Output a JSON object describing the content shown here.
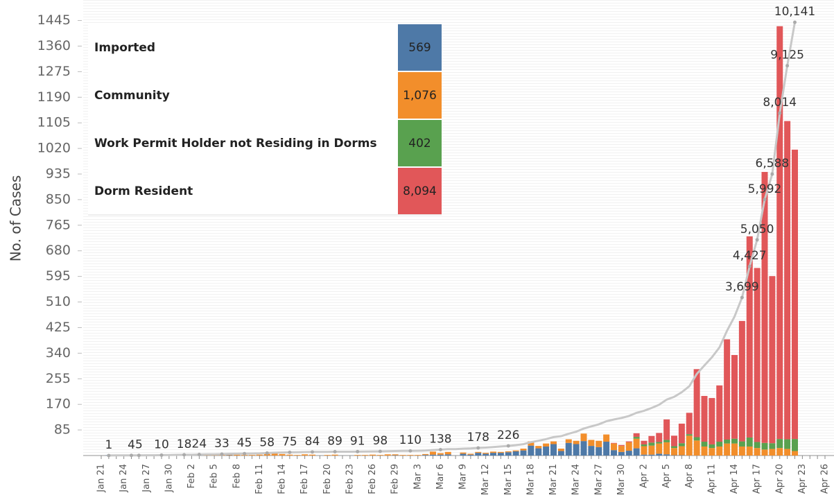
{
  "chart_data": {
    "type": "bar",
    "stacked": true,
    "y_label": "No. of Cases",
    "ylim": [
      0,
      1490
    ],
    "yticks": [
      85,
      170,
      255,
      340,
      425,
      510,
      595,
      680,
      765,
      850,
      935,
      1020,
      1105,
      1190,
      1275,
      1360,
      1445
    ],
    "y2lim": [
      0,
      10500
    ],
    "categories": [
      "Jan 21",
      null,
      null,
      "Jan 24",
      null,
      null,
      "Jan 27",
      null,
      null,
      "Jan 30",
      null,
      null,
      "Feb 2",
      null,
      null,
      "Feb 5",
      null,
      null,
      "Feb 8",
      null,
      null,
      "Feb 11",
      null,
      null,
      "Feb 14",
      null,
      null,
      "Feb 17",
      null,
      null,
      "Feb 20",
      null,
      null,
      "Feb 23",
      null,
      null,
      "Feb 26",
      null,
      null,
      "Feb 29",
      null,
      null,
      "Mar 3",
      null,
      null,
      "Mar 6",
      null,
      null,
      "Mar 9",
      null,
      null,
      "Mar 12",
      null,
      null,
      "Mar 15",
      null,
      null,
      "Mar 18",
      null,
      null,
      "Mar 21",
      null,
      null,
      "Mar 24",
      null,
      null,
      "Mar 27",
      null,
      null,
      "Mar 30",
      null,
      null,
      "Apr 2",
      null,
      null,
      "Apr 5",
      null,
      null,
      "Apr 8",
      null,
      null,
      "Apr 11",
      null,
      null,
      "Apr 14",
      null,
      null,
      "Apr 17",
      null,
      null,
      "Apr 20",
      null,
      null,
      "Apr 23",
      null,
      null,
      "Apr 26"
    ],
    "series": [
      {
        "name": "Imported",
        "color": "#4e79a7",
        "total": 569,
        "total_label": "569",
        "values": [
          0,
          1,
          2,
          0,
          1,
          1,
          2,
          0,
          3,
          3,
          3,
          2,
          0,
          2,
          0,
          0,
          0,
          1,
          0,
          0,
          0,
          0,
          0,
          0,
          0,
          0,
          0,
          0,
          0,
          0,
          0,
          0,
          0,
          0,
          0,
          0,
          0,
          0,
          0,
          1,
          0,
          0,
          0,
          2,
          3,
          3,
          4,
          0,
          6,
          3,
          9,
          6,
          9,
          9,
          11,
          14,
          17,
          33,
          24,
          30,
          38,
          15,
          42,
          38,
          48,
          32,
          28,
          46,
          18,
          12,
          16,
          24,
          3,
          3,
          6,
          4,
          1,
          1,
          0,
          0,
          0,
          0,
          0,
          0,
          0,
          0,
          0,
          0,
          0,
          0,
          0,
          0,
          0,
          0,
          0,
          0,
          0
        ]
      },
      {
        "name": "Community",
        "color": "#f28e2b",
        "total": 1076,
        "total_label": "1,076",
        "values": [
          0,
          0,
          0,
          0,
          0,
          0,
          0,
          0,
          0,
          0,
          0,
          0,
          0,
          4,
          4,
          2,
          3,
          6,
          3,
          2,
          2,
          3,
          8,
          9,
          5,
          3,
          2,
          4,
          3,
          0,
          2,
          3,
          0,
          0,
          2,
          2,
          3,
          2,
          4,
          3,
          2,
          2,
          2,
          3,
          10,
          5,
          8,
          0,
          4,
          3,
          3,
          3,
          4,
          3,
          3,
          3,
          6,
          14,
          8,
          10,
          9,
          8,
          12,
          11,
          25,
          20,
          21,
          24,
          22,
          20,
          28,
          32,
          28,
          30,
          34,
          40,
          24,
          30,
          66,
          50,
          30,
          25,
          30,
          40,
          40,
          30,
          30,
          25,
          20,
          22,
          25,
          22,
          15,
          0,
          0,
          0,
          0
        ]
      },
      {
        "name": "Work Permit Holder not Residing in Dorms",
        "color": "#59a14f",
        "total": 402,
        "total_label": "402",
        "values": [
          0,
          0,
          0,
          0,
          0,
          0,
          0,
          0,
          0,
          0,
          0,
          0,
          0,
          0,
          0,
          0,
          0,
          0,
          0,
          0,
          0,
          0,
          0,
          0,
          0,
          0,
          0,
          0,
          0,
          0,
          0,
          0,
          0,
          0,
          0,
          0,
          0,
          0,
          0,
          0,
          0,
          0,
          0,
          0,
          0,
          0,
          0,
          0,
          0,
          0,
          0,
          0,
          0,
          0,
          0,
          0,
          0,
          0,
          0,
          0,
          0,
          0,
          0,
          0,
          0,
          0,
          0,
          0,
          0,
          0,
          0,
          6,
          6,
          10,
          5,
          8,
          6,
          10,
          5,
          11,
          16,
          12,
          16,
          13,
          16,
          17,
          30,
          20,
          22,
          19,
          30,
          32,
          40,
          0,
          0,
          0,
          0
        ]
      },
      {
        "name": "Dorm Resident",
        "color": "#e15759",
        "total": 8094,
        "total_label": "8,094",
        "values": [
          0,
          0,
          0,
          0,
          0,
          0,
          0,
          0,
          0,
          0,
          0,
          0,
          0,
          0,
          0,
          0,
          0,
          0,
          0,
          0,
          0,
          0,
          0,
          0,
          0,
          0,
          0,
          0,
          0,
          0,
          0,
          0,
          0,
          0,
          0,
          0,
          0,
          0,
          0,
          0,
          0,
          0,
          0,
          0,
          0,
          0,
          0,
          0,
          0,
          0,
          0,
          0,
          0,
          0,
          0,
          0,
          0,
          0,
          0,
          0,
          0,
          0,
          0,
          0,
          0,
          0,
          0,
          0,
          2,
          3,
          3,
          12,
          12,
          22,
          30,
          68,
          35,
          65,
          71,
          226,
          152,
          154,
          187,
          333,
          278,
          400,
          668,
          578,
          900,
          555,
          1371,
          1057,
          961,
          0,
          0,
          0,
          0
        ]
      },
      {
        "type": "line",
        "axis": "y2",
        "color": "#c8c8c8",
        "values": [
          null,
          1,
          3,
          3,
          4,
          5,
          7,
          7,
          10,
          13,
          16,
          18,
          18,
          24,
          28,
          30,
          33,
          40,
          43,
          45,
          47,
          50,
          58,
          67,
          72,
          75,
          77,
          81,
          84,
          84,
          86,
          89,
          89,
          89,
          91,
          93,
          96,
          98,
          102,
          106,
          108,
          110,
          112,
          117,
          130,
          138,
          150,
          150,
          160,
          166,
          178,
          187,
          200,
          212,
          226,
          243,
          266,
          313,
          345,
          385,
          432,
          455,
          509,
          558,
          631,
          683,
          732,
          802,
          844,
          879,
          926,
          1000,
          1049,
          1114,
          1189,
          1309,
          1375,
          1481,
          1623,
          1910,
          2108,
          2299,
          2532,
          2918,
          3252,
          3699,
          4427,
          5050,
          5992,
          6588,
          8014,
          9125,
          10141,
          null,
          null,
          null,
          null
        ],
        "value_labels": [
          null,
          "1",
          null,
          null,
          "4",
          "5",
          null,
          null,
          "10",
          null,
          null,
          "18",
          null,
          "24",
          null,
          null,
          "33",
          null,
          null,
          "45",
          null,
          null,
          "58",
          null,
          null,
          "75",
          null,
          null,
          "84",
          null,
          null,
          "89",
          null,
          null,
          "91",
          null,
          null,
          "98",
          null,
          null,
          null,
          "110",
          null,
          null,
          null,
          "138",
          null,
          null,
          null,
          null,
          "178",
          null,
          null,
          null,
          "226",
          null,
          null,
          null,
          null,
          null,
          null,
          null,
          null,
          null,
          null,
          null,
          null,
          null,
          null,
          null,
          null,
          null,
          null,
          null,
          null,
          null,
          null,
          null,
          null,
          null,
          null,
          null,
          null,
          null,
          null,
          "3,699",
          "4,427",
          "5,050",
          "5,992",
          "6,588",
          "8,014",
          "9,125",
          "10,141",
          null,
          null,
          null,
          null
        ]
      }
    ]
  }
}
